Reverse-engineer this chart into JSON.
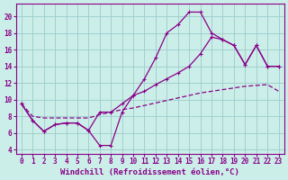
{
  "xlabel": "Windchill (Refroidissement éolien,°C)",
  "xlim": [
    -0.5,
    23.5
  ],
  "ylim": [
    3.5,
    21.5
  ],
  "xticks": [
    0,
    1,
    2,
    3,
    4,
    5,
    6,
    7,
    8,
    9,
    10,
    11,
    12,
    13,
    14,
    15,
    16,
    17,
    18,
    19,
    20,
    21,
    22,
    23
  ],
  "yticks": [
    4,
    6,
    8,
    10,
    12,
    14,
    16,
    18,
    20
  ],
  "bg_color": "#cceee8",
  "line_color": "#880088",
  "grid_color": "#99cccc",
  "curve1_x": [
    0,
    1,
    2,
    3,
    4,
    5,
    6,
    7,
    8,
    9,
    10,
    11,
    12,
    13,
    14,
    15,
    16,
    17,
    18,
    19,
    20,
    21,
    22,
    23
  ],
  "curve1_y": [
    9.5,
    7.5,
    6.2,
    7.0,
    7.2,
    7.2,
    6.3,
    4.5,
    4.5,
    8.5,
    10.5,
    12.5,
    15.0,
    18.0,
    19.0,
    20.5,
    20.5,
    18.0,
    17.2,
    16.5,
    14.2,
    16.5,
    14.0,
    14.0
  ],
  "curve2_x": [
    0,
    1,
    2,
    3,
    4,
    5,
    6,
    7,
    8,
    9,
    10,
    11,
    12,
    13,
    14,
    15,
    16,
    17,
    18,
    19,
    20,
    21,
    22,
    23
  ],
  "curve2_y": [
    9.5,
    7.5,
    6.2,
    7.0,
    7.2,
    7.2,
    6.3,
    8.5,
    8.5,
    9.5,
    10.5,
    11.0,
    11.8,
    12.5,
    13.2,
    14.0,
    15.5,
    17.5,
    17.2,
    16.5,
    14.2,
    16.5,
    14.0,
    14.0
  ],
  "curve3_x": [
    0,
    1,
    2,
    3,
    4,
    5,
    6,
    7,
    8,
    9,
    10,
    11,
    12,
    13,
    14,
    15,
    16,
    17,
    18,
    19,
    20,
    21,
    22,
    23
  ],
  "curve3_y": [
    9.5,
    8.0,
    7.8,
    7.8,
    7.8,
    7.8,
    7.8,
    8.2,
    8.5,
    8.8,
    9.0,
    9.3,
    9.6,
    9.9,
    10.2,
    10.5,
    10.8,
    11.0,
    11.2,
    11.4,
    11.6,
    11.7,
    11.8,
    11.0
  ],
  "tick_fontsize": 5.5,
  "label_fontsize": 6.5
}
